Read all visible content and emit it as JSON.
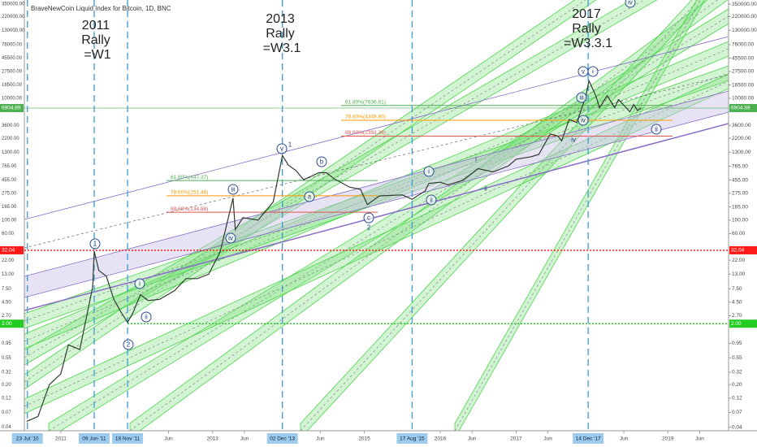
{
  "chart_data": {
    "type": "line",
    "title": "BraveNewCoin Liquid Index for Bitcoin, 1D, BNC",
    "color": "#2f3a2f",
    "log_scale": true,
    "x": [
      2010.55,
      2010.7,
      2010.85,
      2011.0,
      2011.1,
      2011.2,
      2011.25,
      2011.35,
      2011.42,
      2011.44,
      2011.5,
      2011.6,
      2011.7,
      2011.8,
      2011.88,
      2011.95,
      2012.05,
      2012.15,
      2012.3,
      2012.5,
      2012.65,
      2012.8,
      2012.95,
      2013.1,
      2013.27,
      2013.3,
      2013.4,
      2013.6,
      2013.8,
      2013.92,
      2014.0,
      2014.1,
      2014.2,
      2014.4,
      2014.5,
      2014.6,
      2014.8,
      2014.95,
      2015.04,
      2015.2,
      2015.5,
      2015.63,
      2015.8,
      2015.85,
      2016.0,
      2016.1,
      2016.3,
      2016.5,
      2016.7,
      2016.9,
      2017.0,
      2017.2,
      2017.3,
      2017.45,
      2017.55,
      2017.6,
      2017.7,
      2017.8,
      2017.85,
      2017.92,
      2017.96,
      2018.05,
      2018.1,
      2018.2,
      2018.3,
      2018.35,
      2018.45,
      2018.5,
      2018.55,
      2018.6,
      2018.65
    ],
    "values": [
      0.05,
      0.06,
      0.2,
      0.3,
      0.9,
      0.8,
      0.75,
      3,
      8,
      31,
      15,
      12,
      5,
      3,
      2.1,
      3,
      6,
      4.8,
      5,
      7,
      11,
      11,
      13,
      30,
      230,
      70,
      110,
      100,
      200,
      1150,
      800,
      650,
      460,
      600,
      600,
      480,
      350,
      320,
      180,
      250,
      260,
      220,
      300,
      400,
      420,
      380,
      450,
      700,
      620,
      780,
      1000,
      1100,
      1200,
      2600,
      2400,
      2000,
      4500,
      4000,
      6000,
      11000,
      19500,
      11000,
      7000,
      11000,
      7000,
      9500,
      7000,
      6000,
      7900,
      6300,
      6905
    ],
    "xlim": [
      2010.52,
      2019.8
    ],
    "ylim": [
      0.035,
      410000
    ],
    "xticks": [
      {
        "value": 2011,
        "label": "2011"
      },
      {
        "value": 2012.42,
        "label": "Jun"
      },
      {
        "value": 2013,
        "label": "2013"
      },
      {
        "value": 2013.42,
        "label": "Jun"
      },
      {
        "value": 2014.42,
        "label": "Jun"
      },
      {
        "value": 2015,
        "label": "2015"
      },
      {
        "value": 2016,
        "label": "2016"
      },
      {
        "value": 2016.42,
        "label": "Jun"
      },
      {
        "value": 2017,
        "label": "2017"
      },
      {
        "value": 2017.42,
        "label": "Jun"
      },
      {
        "value": 2018.42,
        "label": "Jun"
      },
      {
        "value": 2019,
        "label": "2019"
      },
      {
        "value": 2019.42,
        "label": "Jun"
      }
    ],
    "yticks": [
      {
        "value": 350000,
        "label": "350000.00"
      },
      {
        "value": 220000,
        "label": "220000.00"
      },
      {
        "value": 130000,
        "label": "130000.00"
      },
      {
        "value": 76000,
        "label": "76000.00"
      },
      {
        "value": 45500,
        "label": "45500.00"
      },
      {
        "value": 27500,
        "label": "27500.00"
      },
      {
        "value": 16500,
        "label": "16500.00"
      },
      {
        "value": 10000,
        "label": "10000.00"
      },
      {
        "value": 3600,
        "label": "3600.00"
      },
      {
        "value": 2200,
        "label": "2200.00"
      },
      {
        "value": 1300,
        "label": "1300.00"
      },
      {
        "value": 765,
        "label": "765.00"
      },
      {
        "value": 455,
        "label": "455.00"
      },
      {
        "value": 275,
        "label": "275.00"
      },
      {
        "value": 165,
        "label": "165.00"
      },
      {
        "value": 100,
        "label": "100.00"
      },
      {
        "value": 60,
        "label": "60.00"
      },
      {
        "value": 22,
        "label": "22.00"
      },
      {
        "value": 13,
        "label": "13.00"
      },
      {
        "value": 7.5,
        "label": "7.50"
      },
      {
        "value": 4.5,
        "label": "4.50"
      },
      {
        "value": 2.7,
        "label": "2.70"
      },
      {
        "value": 0.95,
        "label": "0.95"
      },
      {
        "value": 0.55,
        "label": "0.55"
      },
      {
        "value": 0.32,
        "label": "0.32"
      },
      {
        "value": 0.2,
        "label": "0.20"
      },
      {
        "value": 0.12,
        "label": "0.12"
      },
      {
        "value": 0.07,
        "label": "0.07"
      },
      {
        "value": 0.04,
        "label": "0.04"
      }
    ],
    "hlines": [
      {
        "value": 6904.89,
        "color": "#4caf50"
      },
      {
        "value": 32.04,
        "color": "#ff1a1a"
      },
      {
        "value": 2,
        "label": "2.00",
        "color": "#22cc22"
      }
    ],
    "vlines": [
      {
        "value": 2010.56,
        "label": "23 Jul '10"
      },
      {
        "value": 2011.44,
        "label": "09 Jun '11"
      },
      {
        "value": 2011.88,
        "label": "18 Nov '11"
      },
      {
        "value": 2013.92,
        "label": "02 Dec '13"
      },
      {
        "value": 2015.63,
        "label": "17 Aug '15"
      },
      {
        "value": 2017.95,
        "label": "14 Dec '17"
      }
    ],
    "fib_levels": [
      {
        "value": 447.37,
        "label": "61.80%(447.37)",
        "color": "#4caf50"
      },
      {
        "value": 251.48,
        "label": "78.60%(251.48)",
        "color": "#ff9800"
      },
      {
        "value": 134.88,
        "label": "88.60%(134.88)",
        "color": "#e0554f"
      },
      {
        "value": 7636.61,
        "label": "61.80%(7636.61)",
        "color": "#4caf50"
      },
      {
        "value": 4349.8,
        "label": "78.60%(4349.80)",
        "color": "#ff9800"
      },
      {
        "value": 2393.36,
        "label": "88.60%(2393.36)",
        "color": "#e0554f"
      }
    ],
    "notes": [
      [
        "2011",
        "Rally",
        "=W1"
      ],
      [
        "2013",
        "Rally",
        "=W3.1"
      ],
      [
        "2017",
        "Rally",
        "=W3.3.1"
      ]
    ],
    "wave_labels": [
      "1",
      "2",
      "i",
      "ii",
      "iii",
      "iv",
      "v",
      "1",
      "a",
      "b",
      "c",
      "2",
      "i",
      "ii",
      "i",
      "ii",
      "v",
      "i",
      "iii",
      "iv",
      "iv",
      "ii",
      "iv"
    ]
  }
}
